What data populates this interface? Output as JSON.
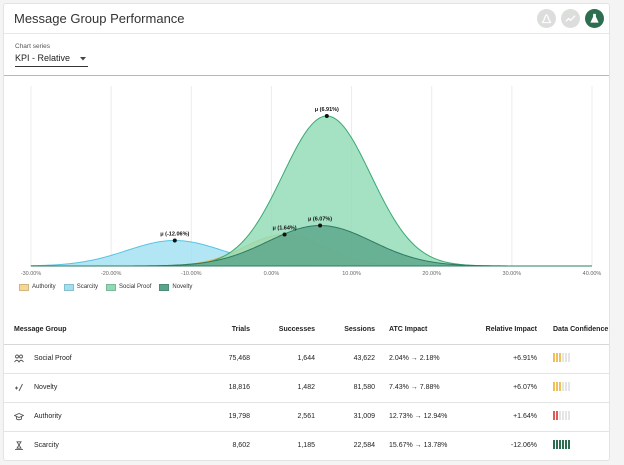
{
  "header": {
    "title": "Message Group Performance",
    "buttons": [
      {
        "icon": "bell-curve-icon",
        "state": "inactive"
      },
      {
        "icon": "trend-line-icon",
        "state": "inactive"
      },
      {
        "icon": "flask-icon",
        "state": "active"
      }
    ]
  },
  "selector": {
    "label": "Chart series",
    "value": "KPI - Relative"
  },
  "chart_data": {
    "type": "area",
    "x_ticks": [
      "-30.00%",
      "-20.00%",
      "-10.00%",
      "0.00%",
      "10.00%",
      "20.00%",
      "30.00%",
      "40.00%"
    ],
    "xlim": [
      -30,
      40
    ],
    "series": [
      {
        "name": "Authority",
        "mean": 1.64,
        "label": "μ (1.64%)",
        "color": "#f5d694",
        "stroke": "#e2bd61",
        "sd": 5.0,
        "peak": 0.21
      },
      {
        "name": "Scarcity",
        "mean": -12.06,
        "label": "μ (-12.06%)",
        "color": "#9fe0f2",
        "stroke": "#56c4e0",
        "sd": 6.0,
        "peak": 0.17
      },
      {
        "name": "Social Proof",
        "mean": 6.91,
        "label": "μ (6.91%)",
        "color": "#8fd9b4",
        "stroke": "#3aa873",
        "sd": 5.5,
        "peak": 1.0
      },
      {
        "name": "Novelty",
        "mean": 6.07,
        "label": "μ (6.07%)",
        "color": "#5aa58a",
        "stroke": "#2f7a62",
        "sd": 6.5,
        "peak": 0.27
      }
    ],
    "grid": true,
    "legend_position": "bottom-left"
  },
  "table": {
    "columns": [
      "Message Group",
      "Trials",
      "Successes",
      "Sessions",
      "ATC Impact",
      "Relative Impact",
      "Data Confidence"
    ],
    "rows": [
      {
        "group": "Social Proof",
        "icon": "people-icon",
        "trials": "75,468",
        "successes": "1,644",
        "sessions": "43,622",
        "atc": "2.04% → 2.18%",
        "relative": "+6.91%",
        "confidence": {
          "filled": 3,
          "total": 6,
          "color": "#f0c05a"
        }
      },
      {
        "group": "Novelty",
        "icon": "sparkle-icon",
        "trials": "18,816",
        "successes": "1,482",
        "sessions": "81,580",
        "atc": "7.43% → 7.88%",
        "relative": "+6.07%",
        "confidence": {
          "filled": 3,
          "total": 6,
          "color": "#f0c05a"
        }
      },
      {
        "group": "Authority",
        "icon": "graduation-cap-icon",
        "trials": "19,798",
        "successes": "2,561",
        "sessions": "31,009",
        "atc": "12.73% → 12.94%",
        "relative": "+1.64%",
        "confidence": {
          "filled": 2,
          "total": 6,
          "color": "#e05a5a"
        }
      },
      {
        "group": "Scarcity",
        "icon": "hourglass-hand-icon",
        "trials": "8,602",
        "successes": "1,185",
        "sessions": "22,584",
        "atc": "15.67% → 13.78%",
        "relative": "-12.06%",
        "confidence": {
          "filled": 6,
          "total": 6,
          "color": "#2c6e4f"
        }
      }
    ]
  }
}
